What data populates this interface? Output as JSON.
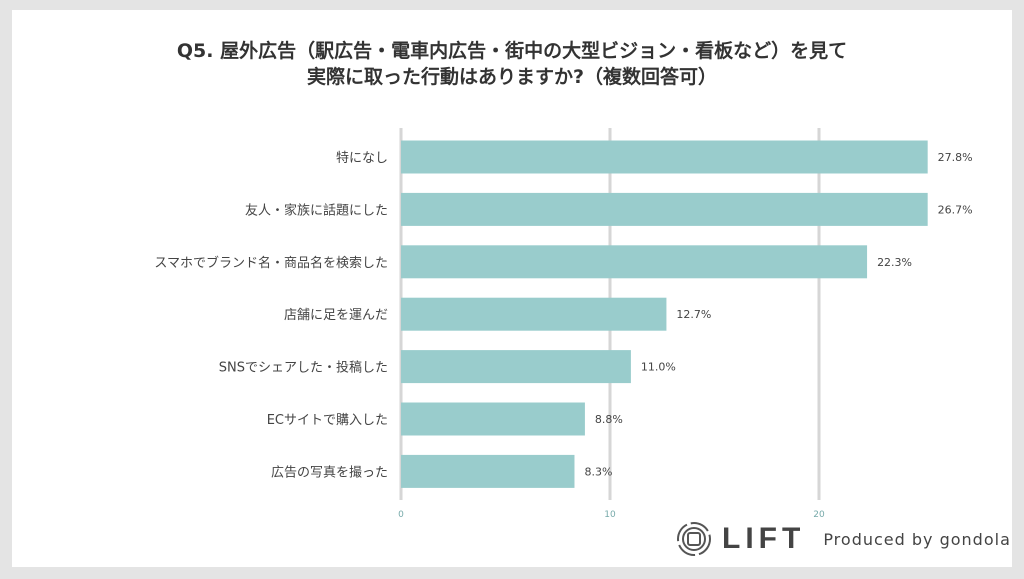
{
  "chart_data": {
    "type": "bar",
    "orientation": "horizontal",
    "title_line1": "Q5. 屋外広告（駅広告・電車内広告・街中の大型ビジョン・看板など）を見て",
    "title_line2": "実際に取った行動はありますか?（複数回答可）",
    "categories": [
      "特になし",
      "友人・家族に話題にした",
      "スマホでブランド名・商品名を検索した",
      "店舗に足を運んだ",
      "SNSでシェアした・投稿した",
      "ECサイトで購入した",
      "広告の写真を撮った"
    ],
    "values": [
      27.8,
      26.7,
      22.3,
      12.7,
      11.0,
      8.8,
      8.3
    ],
    "value_labels": [
      "27.8%",
      "26.7%",
      "22.3%",
      "12.7%",
      "11.0%",
      "8.8%",
      "8.3%"
    ],
    "x_ticks": [
      "0",
      "10",
      "20"
    ],
    "xlim": [
      0,
      25.2
    ],
    "grid": true,
    "bar_color": "#99cccc"
  },
  "footer": {
    "logo": "LIFT",
    "produced_by": "Produced by gondola"
  }
}
